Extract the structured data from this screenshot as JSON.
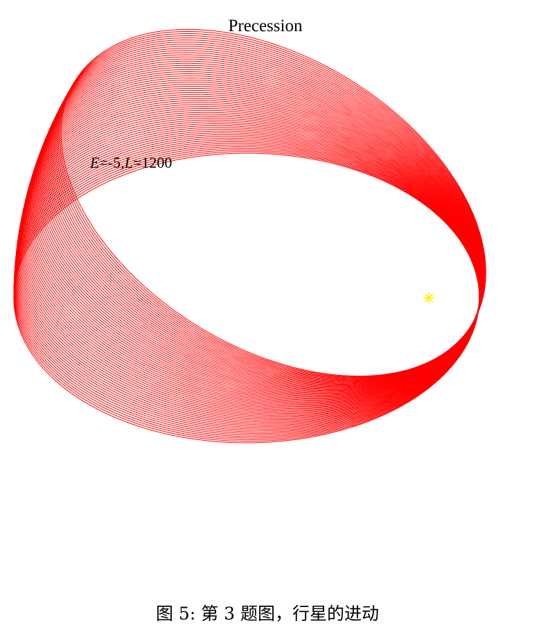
{
  "chart_data": {
    "type": "line",
    "title": "Precession",
    "annotation": {
      "E_symbol": "E",
      "E_value": "=-5,",
      "L_symbol": "L",
      "L_value": "=1200"
    },
    "parameters": {
      "E": -5,
      "L": 1200
    },
    "orbit": {
      "semi_major_axis": 336,
      "semi_minor_axis": 209,
      "focus": [
        0,
        0
      ],
      "start_angle_deg": 0,
      "precession_per_turn_deg": 0.5,
      "turns": 64
    },
    "star": {
      "x": 0,
      "y": 0,
      "marker": "*",
      "color": "#ffee00"
    },
    "series_color": "#ff0000",
    "grid": false,
    "axes_visible": false
  },
  "caption": "图 5: 第 3 题图，行星的进动"
}
